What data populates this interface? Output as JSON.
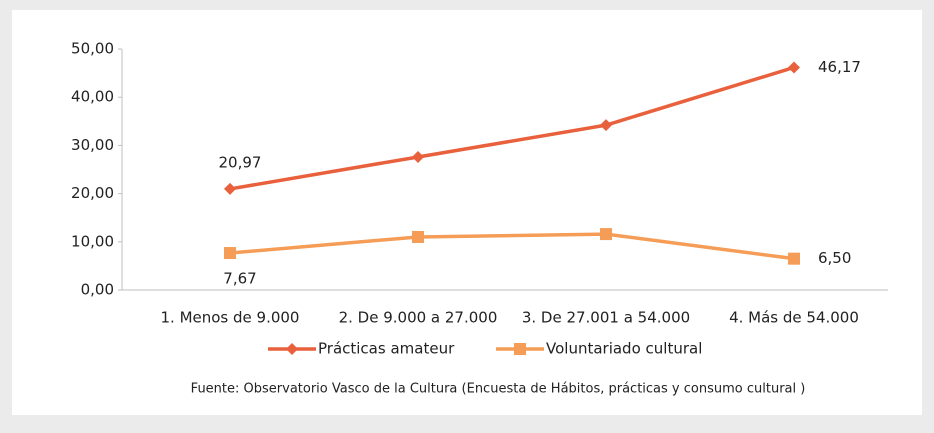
{
  "chart_data": {
    "type": "line",
    "categories": [
      "1. Menos de 9.000",
      "2. De 9.000 a 27.000",
      "3. De 27.001 a 54.000",
      "4. Más de 54.000"
    ],
    "series": [
      {
        "name": "Prácticas amateur",
        "color": "#e8603c",
        "marker": "diamond",
        "values": [
          20.97,
          27.6,
          34.2,
          46.17
        ],
        "value_labels": [
          "20,97",
          null,
          null,
          "46,17"
        ]
      },
      {
        "name": "Voluntariado cultural",
        "color": "#f59d56",
        "marker": "square",
        "values": [
          7.67,
          11.0,
          11.6,
          6.5
        ],
        "value_labels": [
          "7,67",
          null,
          null,
          "6,50"
        ]
      }
    ],
    "ylim": [
      0,
      50
    ],
    "yticks": [
      {
        "value": 0,
        "label": "0,00"
      },
      {
        "value": 10,
        "label": "10,00"
      },
      {
        "value": 20,
        "label": "20,00"
      },
      {
        "value": 30,
        "label": "30,00"
      },
      {
        "value": 40,
        "label": "40,00"
      },
      {
        "value": 50,
        "label": "50,00"
      }
    ],
    "legend": "bottom",
    "source": "Fuente: Observatorio Vasco de la Cultura  (Encuesta de Hábitos, prácticas y consumo cultural )"
  }
}
